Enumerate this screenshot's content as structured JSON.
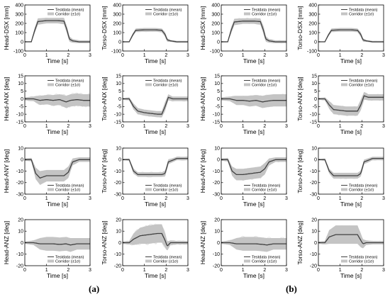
{
  "figure": {
    "panel_labels": [
      "(a)",
      "(b)"
    ],
    "legend": {
      "mean_label": "Testdata (mean)",
      "corridor_label": "Corridor (±1σ)"
    },
    "colors": {
      "mean": "#404040",
      "corridor": "#c4c4c4",
      "testdata": "#dcdcdc",
      "axis": "#000000"
    }
  },
  "chart_data": [
    {
      "type": "line",
      "group": "a",
      "row": 0,
      "col": 0,
      "ylabel": "Head-DSX [mm]",
      "xlabel": "Time [s]",
      "xlim": [
        0,
        3
      ],
      "ylim": [
        -100,
        400
      ],
      "yticks": [
        -100,
        0,
        100,
        200,
        300,
        400
      ],
      "xticks": [
        0,
        1,
        2,
        3
      ],
      "legend": "top-right",
      "series": [
        {
          "name": "Testdata (mean)",
          "x": [
            0,
            0.3,
            0.45,
            0.6,
            1.0,
            1.5,
            1.8,
            1.95,
            2.05,
            2.2,
            2.5,
            3.0
          ],
          "y": [
            0,
            0,
            120,
            220,
            230,
            230,
            225,
            120,
            30,
            10,
            0,
            0
          ],
          "band": [
            5,
            5,
            30,
            35,
            30,
            30,
            35,
            40,
            30,
            20,
            15,
            15
          ]
        }
      ]
    },
    {
      "type": "line",
      "group": "a",
      "row": 0,
      "col": 1,
      "ylabel": "Torso-DSX [mm]",
      "xlabel": "Time [s]",
      "xlim": [
        0,
        3
      ],
      "ylim": [
        -100,
        400
      ],
      "yticks": [
        -100,
        0,
        100,
        200,
        300,
        400
      ],
      "xticks": [
        0,
        1,
        2,
        3
      ],
      "legend": "top-right",
      "series": [
        {
          "name": "Testdata (mean)",
          "x": [
            0,
            0.3,
            0.45,
            0.6,
            1.0,
            1.5,
            1.8,
            1.95,
            2.05,
            2.2,
            2.5,
            3.0
          ],
          "y": [
            0,
            0,
            70,
            125,
            130,
            130,
            125,
            80,
            20,
            10,
            0,
            0
          ],
          "band": [
            5,
            5,
            15,
            20,
            20,
            20,
            20,
            25,
            20,
            10,
            10,
            10
          ]
        }
      ]
    },
    {
      "type": "line",
      "group": "b",
      "row": 0,
      "col": 2,
      "ylabel": "Head-DSX [mm]",
      "xlabel": "Time [s]",
      "xlim": [
        0,
        3
      ],
      "ylim": [
        -100,
        400
      ],
      "yticks": [
        -100,
        0,
        100,
        200,
        300,
        400
      ],
      "xticks": [
        0,
        1,
        2,
        3
      ],
      "legend": "top-right",
      "series": [
        {
          "name": "Testdata (mean)",
          "x": [
            0,
            0.3,
            0.45,
            0.6,
            1.0,
            1.5,
            1.8,
            1.95,
            2.05,
            2.2,
            2.5,
            3.0
          ],
          "y": [
            0,
            0,
            120,
            215,
            225,
            225,
            220,
            120,
            30,
            10,
            0,
            0
          ],
          "band": [
            5,
            5,
            30,
            35,
            30,
            30,
            35,
            40,
            30,
            20,
            15,
            15
          ]
        }
      ]
    },
    {
      "type": "line",
      "group": "b",
      "row": 0,
      "col": 3,
      "ylabel": "Torso-DSX [mm]",
      "xlabel": "Time [s]",
      "xlim": [
        0,
        3
      ],
      "ylim": [
        -100,
        400
      ],
      "yticks": [
        -100,
        0,
        100,
        200,
        300,
        400
      ],
      "xticks": [
        0,
        1,
        2,
        3
      ],
      "legend": "top-right",
      "series": [
        {
          "name": "Testdata (mean)",
          "x": [
            0,
            0.3,
            0.45,
            0.6,
            1.0,
            1.5,
            1.8,
            1.95,
            2.05,
            2.2,
            2.5,
            3.0
          ],
          "y": [
            0,
            0,
            70,
            125,
            130,
            130,
            125,
            80,
            20,
            10,
            0,
            0
          ],
          "band": [
            5,
            5,
            15,
            20,
            20,
            20,
            20,
            25,
            20,
            10,
            10,
            10
          ]
        }
      ]
    },
    {
      "type": "line",
      "group": "a",
      "row": 1,
      "col": 0,
      "ylabel": "Head-ANX [deg]",
      "xlabel": "Time [s]",
      "xlim": [
        0,
        3
      ],
      "ylim": [
        -15,
        15
      ],
      "yticks": [
        -15,
        -10,
        -5,
        0,
        5,
        10,
        15
      ],
      "xticks": [
        0,
        1,
        2,
        3
      ],
      "legend": "top-right",
      "series": [
        {
          "name": "Testdata (mean)",
          "x": [
            0,
            0.4,
            0.7,
            1.0,
            1.3,
            1.6,
            1.9,
            2.1,
            2.4,
            2.7,
            3.0
          ],
          "y": [
            0,
            0,
            -1,
            -0.5,
            -1,
            -0.5,
            -2,
            -1,
            -0.5,
            -1,
            -1
          ],
          "band": [
            1,
            1.5,
            3,
            3,
            3.5,
            3.5,
            4,
            4,
            4,
            4,
            4
          ]
        }
      ]
    },
    {
      "type": "line",
      "group": "a",
      "row": 1,
      "col": 1,
      "ylabel": "Torso-ANX [deg]",
      "xlabel": "Time [s]",
      "xlim": [
        0,
        3
      ],
      "ylim": [
        -15,
        15
      ],
      "yticks": [
        -15,
        -10,
        -5,
        0,
        5,
        10,
        15
      ],
      "xticks": [
        0,
        1,
        2,
        3
      ],
      "legend": "top-right",
      "series": [
        {
          "name": "Testdata (mean)",
          "x": [
            0,
            0.3,
            0.5,
            0.7,
            1.0,
            1.3,
            1.6,
            1.8,
            1.95,
            2.1,
            2.3,
            2.6,
            3.0
          ],
          "y": [
            0,
            0,
            -5,
            -8,
            -9,
            -9.5,
            -10,
            -10,
            -5,
            1,
            0,
            0,
            0
          ],
          "band": [
            0.5,
            1,
            2,
            2,
            2,
            2,
            2,
            2,
            3,
            2,
            1.5,
            1.5,
            1.5
          ]
        }
      ]
    },
    {
      "type": "line",
      "group": "b",
      "row": 1,
      "col": 2,
      "ylabel": "Head-ANX [deg]",
      "xlabel": "Time [s]",
      "xlim": [
        0,
        3
      ],
      "ylim": [
        -15,
        15
      ],
      "yticks": [
        -15,
        -10,
        -5,
        0,
        5,
        10,
        15
      ],
      "xticks": [
        0,
        1,
        2,
        3
      ],
      "legend": "top-right",
      "series": [
        {
          "name": "Testdata (mean)",
          "x": [
            0,
            0.4,
            0.7,
            1.0,
            1.3,
            1.6,
            1.9,
            2.1,
            2.4,
            2.7,
            3.0
          ],
          "y": [
            0,
            0,
            -1,
            -1,
            -1.5,
            -1,
            -2,
            -1.5,
            -1,
            -1,
            -1
          ],
          "band": [
            1,
            1.5,
            3,
            3,
            3.5,
            3.5,
            4,
            4,
            4,
            4,
            4
          ]
        }
      ]
    },
    {
      "type": "line",
      "group": "b",
      "row": 1,
      "col": 3,
      "ylabel": "Torso-ANX [deg]",
      "xlabel": "Time [s]",
      "xlim": [
        0,
        3
      ],
      "ylim": [
        -15,
        15
      ],
      "yticks": [
        -15,
        -10,
        -5,
        0,
        5,
        10,
        15
      ],
      "xticks": [
        0,
        1,
        2,
        3
      ],
      "legend": "top-right",
      "series": [
        {
          "name": "Testdata (mean)",
          "x": [
            0,
            0.3,
            0.5,
            0.7,
            1.0,
            1.3,
            1.6,
            1.8,
            1.95,
            2.1,
            2.3,
            2.6,
            3.0
          ],
          "y": [
            0,
            0,
            -4,
            -7,
            -7.5,
            -8,
            -8,
            -8,
            -4,
            2,
            1,
            1,
            1
          ],
          "band": [
            0.5,
            1,
            2.5,
            3,
            3,
            3,
            3,
            3,
            3.5,
            2.5,
            2,
            2,
            2
          ]
        }
      ]
    },
    {
      "type": "line",
      "group": "a",
      "row": 2,
      "col": 0,
      "ylabel": "Head-ANY [deg]",
      "xlabel": "Time [s]",
      "xlim": [
        0,
        3
      ],
      "ylim": [
        -30,
        10
      ],
      "yticks": [
        -30,
        -20,
        -10,
        0,
        10
      ],
      "xticks": [
        0,
        1,
        2,
        3
      ],
      "legend": "bottom-right",
      "series": [
        {
          "name": "Testdata (mean)",
          "x": [
            0,
            0.3,
            0.5,
            0.7,
            1.0,
            1.4,
            1.8,
            2.0,
            2.2,
            2.5,
            3.0
          ],
          "y": [
            0,
            0,
            -12,
            -16,
            -14,
            -14,
            -14,
            -11,
            -2,
            0,
            0
          ],
          "band": [
            1,
            1.5,
            5,
            6,
            5,
            5,
            5,
            5,
            3,
            2,
            2
          ]
        }
      ]
    },
    {
      "type": "line",
      "group": "a",
      "row": 2,
      "col": 1,
      "ylabel": "Torso-ANY [deg]",
      "xlabel": "Time [s]",
      "xlim": [
        0,
        3
      ],
      "ylim": [
        -30,
        10
      ],
      "yticks": [
        -30,
        -20,
        -10,
        0,
        10
      ],
      "xticks": [
        0,
        1,
        2,
        3
      ],
      "legend": "bottom-right",
      "series": [
        {
          "name": "Testdata (mean)",
          "x": [
            0,
            0.3,
            0.5,
            0.7,
            1.0,
            1.4,
            1.8,
            1.95,
            2.1,
            2.5,
            3.0
          ],
          "y": [
            0,
            0,
            -10,
            -13,
            -13,
            -13,
            -13,
            -12,
            -2,
            1,
            1
          ],
          "band": [
            0.5,
            1,
            2,
            2,
            2,
            2,
            2,
            2.5,
            2,
            1.5,
            1.5
          ]
        }
      ]
    },
    {
      "type": "line",
      "group": "b",
      "row": 2,
      "col": 2,
      "ylabel": "Head-ANY [deg]",
      "xlabel": "Time [s]",
      "xlim": [
        0,
        3
      ],
      "ylim": [
        -30,
        10
      ],
      "yticks": [
        -30,
        -20,
        -10,
        0,
        10
      ],
      "xticks": [
        0,
        1,
        2,
        3
      ],
      "legend": "bottom-right",
      "series": [
        {
          "name": "Testdata (mean)",
          "x": [
            0,
            0.3,
            0.5,
            0.7,
            1.0,
            1.4,
            1.8,
            2.0,
            2.2,
            2.5,
            3.0
          ],
          "y": [
            0,
            0,
            -10,
            -13,
            -13,
            -12,
            -11,
            -8,
            -2,
            0,
            0
          ],
          "band": [
            1,
            1.5,
            4,
            5,
            5,
            5,
            5,
            5,
            3,
            2,
            2
          ]
        }
      ]
    },
    {
      "type": "line",
      "group": "b",
      "row": 2,
      "col": 3,
      "ylabel": "Torso-ANY [deg]",
      "xlabel": "Time [s]",
      "xlim": [
        0,
        3
      ],
      "ylim": [
        -30,
        10
      ],
      "yticks": [
        -30,
        -20,
        -10,
        0,
        10
      ],
      "xticks": [
        0,
        1,
        2,
        3
      ],
      "legend": "bottom-right",
      "series": [
        {
          "name": "Testdata (mean)",
          "x": [
            0,
            0.3,
            0.5,
            0.7,
            1.0,
            1.4,
            1.8,
            1.95,
            2.1,
            2.5,
            3.0
          ],
          "y": [
            0,
            0,
            -10,
            -14,
            -14,
            -14,
            -14,
            -12,
            -2,
            1,
            1
          ],
          "band": [
            0.5,
            1,
            2,
            2.5,
            2.5,
            2.5,
            2.5,
            2.5,
            2,
            1.5,
            1.5
          ]
        }
      ]
    },
    {
      "type": "line",
      "group": "a",
      "row": 3,
      "col": 0,
      "ylabel": "Head-ANZ [deg]",
      "xlabel": "Time [s]",
      "xlim": [
        0,
        3
      ],
      "ylim": [
        -20,
        20
      ],
      "yticks": [
        -20,
        -10,
        0,
        10,
        20
      ],
      "xticks": [
        0,
        1,
        2,
        3
      ],
      "legend": "bottom-right",
      "series": [
        {
          "name": "Testdata (mean)",
          "x": [
            0,
            0.4,
            0.7,
            1.0,
            1.3,
            1.6,
            1.9,
            2.1,
            2.4,
            2.7,
            3.0
          ],
          "y": [
            0,
            0,
            -1,
            -1,
            -1,
            -1.5,
            -1,
            -2,
            -1,
            -1,
            -1
          ],
          "band": [
            1,
            2,
            5,
            6,
            6,
            6,
            6,
            6,
            5,
            5,
            5
          ]
        }
      ]
    },
    {
      "type": "line",
      "group": "a",
      "row": 3,
      "col": 1,
      "ylabel": "Torso-ANZ [deg]",
      "xlabel": "Time [s]",
      "xlim": [
        0,
        3
      ],
      "ylim": [
        -20,
        20
      ],
      "yticks": [
        -20,
        -10,
        0,
        10,
        20
      ],
      "xticks": [
        0,
        1,
        2,
        3
      ],
      "legend": "bottom-right",
      "series": [
        {
          "name": "Testdata (mean)",
          "x": [
            0,
            0.3,
            0.5,
            0.8,
            1.2,
            1.6,
            1.8,
            1.95,
            2.05,
            2.2,
            2.5,
            3.0
          ],
          "y": [
            0,
            0,
            3,
            6,
            7,
            8,
            8,
            2,
            -3,
            0,
            0,
            0
          ],
          "band": [
            1,
            1.5,
            5,
            7,
            8,
            8,
            8,
            6,
            4,
            2,
            1.5,
            1.5
          ]
        }
      ]
    },
    {
      "type": "line",
      "group": "b",
      "row": 3,
      "col": 2,
      "ylabel": "Head-ANZ [deg]",
      "xlabel": "Time [s]",
      "xlim": [
        0,
        3
      ],
      "ylim": [
        -20,
        20
      ],
      "yticks": [
        -20,
        -10,
        0,
        10,
        20
      ],
      "xticks": [
        0,
        1,
        2,
        3
      ],
      "legend": "bottom-right",
      "series": [
        {
          "name": "Testdata (mean)",
          "x": [
            0,
            0.4,
            0.7,
            1.0,
            1.3,
            1.6,
            1.9,
            2.1,
            2.4,
            2.7,
            3.0
          ],
          "y": [
            0,
            0,
            -1,
            -1,
            -1,
            -1,
            -1.5,
            -2,
            -1,
            -1,
            -1
          ],
          "band": [
            1,
            2,
            5,
            6,
            6,
            6,
            6,
            6,
            5,
            5,
            5
          ]
        }
      ]
    },
    {
      "type": "line",
      "group": "b",
      "row": 3,
      "col": 3,
      "ylabel": "Torso-ANZ [deg]",
      "xlabel": "Time [s]",
      "xlim": [
        0,
        3
      ],
      "ylim": [
        -20,
        20
      ],
      "yticks": [
        -20,
        -10,
        0,
        10,
        20
      ],
      "xticks": [
        0,
        1,
        2,
        3
      ],
      "legend": "bottom-right",
      "series": [
        {
          "name": "Testdata (mean)",
          "x": [
            0,
            0.3,
            0.5,
            0.8,
            1.2,
            1.6,
            1.8,
            1.95,
            2.05,
            2.2,
            2.5,
            3.0
          ],
          "y": [
            0,
            0,
            5,
            7,
            7,
            7,
            7,
            2,
            -1,
            0,
            0,
            0
          ],
          "band": [
            1,
            1.5,
            6,
            8,
            8,
            8,
            8,
            6,
            4,
            2,
            1.5,
            1.5
          ]
        }
      ]
    }
  ]
}
